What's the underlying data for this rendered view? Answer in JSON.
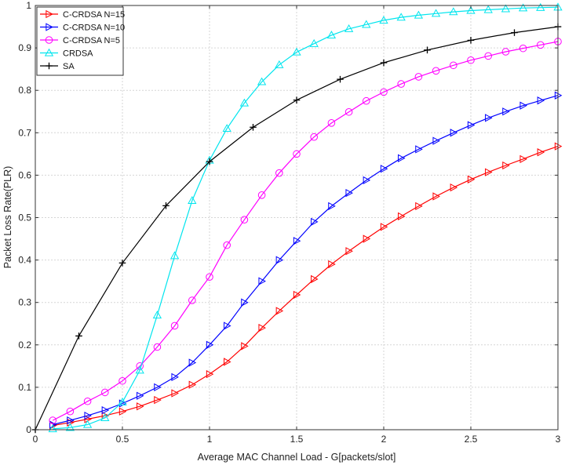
{
  "chart_data": {
    "type": "line",
    "title": "",
    "xlabel": "Average MAC Channel Load - G[packets/slot]",
    "ylabel": "Packet Loss Rate(PLR)",
    "xlim": [
      0,
      3
    ],
    "ylim": [
      0,
      1
    ],
    "xticks": [
      0,
      0.5,
      1,
      1.5,
      2,
      2.5,
      3
    ],
    "xtick_labels": [
      "0",
      "0.5",
      "1",
      "1.5",
      "2",
      "2.5",
      "3"
    ],
    "yticks": [
      0,
      0.1,
      0.2,
      0.3,
      0.4,
      0.5,
      0.6,
      0.7,
      0.8,
      0.9,
      1
    ],
    "ytick_labels": [
      "0",
      "0.1",
      "0.2",
      "0.3",
      "0.4",
      "0.5",
      "0.6",
      "0.7",
      "0.8",
      "0.9",
      "1"
    ],
    "grid": true,
    "legend_position": "top-left",
    "series": [
      {
        "name": "C-CRDSA N=15",
        "color": "#ff0000",
        "marker": "triangle-right",
        "x": [
          0.1,
          0.2,
          0.3,
          0.4,
          0.5,
          0.6,
          0.7,
          0.8,
          0.9,
          1.0,
          1.1,
          1.2,
          1.3,
          1.4,
          1.5,
          1.6,
          1.7,
          1.8,
          1.9,
          2.0,
          2.1,
          2.2,
          2.3,
          2.4,
          2.5,
          2.6,
          2.7,
          2.8,
          2.9,
          3.0
        ],
        "y": [
          0.01,
          0.017,
          0.025,
          0.033,
          0.043,
          0.055,
          0.07,
          0.086,
          0.106,
          0.131,
          0.16,
          0.197,
          0.24,
          0.28,
          0.318,
          0.355,
          0.39,
          0.421,
          0.45,
          0.478,
          0.503,
          0.527,
          0.55,
          0.571,
          0.59,
          0.607,
          0.623,
          0.638,
          0.654,
          0.668
        ]
      },
      {
        "name": "C-CRDSA N=10",
        "color": "#0000ff",
        "marker": "triangle-right",
        "x": [
          0.1,
          0.2,
          0.3,
          0.4,
          0.5,
          0.6,
          0.7,
          0.8,
          0.9,
          1.0,
          1.1,
          1.2,
          1.3,
          1.4,
          1.5,
          1.6,
          1.7,
          1.8,
          1.9,
          2.0,
          2.1,
          2.2,
          2.3,
          2.4,
          2.5,
          2.6,
          2.7,
          2.8,
          2.9,
          3.0
        ],
        "y": [
          0.012,
          0.022,
          0.033,
          0.046,
          0.062,
          0.08,
          0.1,
          0.124,
          0.158,
          0.2,
          0.245,
          0.3,
          0.35,
          0.4,
          0.445,
          0.49,
          0.527,
          0.558,
          0.588,
          0.615,
          0.64,
          0.661,
          0.681,
          0.7,
          0.718,
          0.735,
          0.75,
          0.764,
          0.776,
          0.788
        ]
      },
      {
        "name": "C-CRDSA N=5",
        "color": "#ff00ff",
        "marker": "circle",
        "x": [
          0.1,
          0.2,
          0.3,
          0.4,
          0.5,
          0.6,
          0.7,
          0.8,
          0.9,
          1.0,
          1.1,
          1.2,
          1.3,
          1.4,
          1.5,
          1.6,
          1.7,
          1.8,
          1.9,
          2.0,
          2.1,
          2.2,
          2.3,
          2.4,
          2.5,
          2.6,
          2.7,
          2.8,
          2.9,
          3.0
        ],
        "y": [
          0.022,
          0.043,
          0.067,
          0.088,
          0.115,
          0.15,
          0.195,
          0.245,
          0.305,
          0.36,
          0.435,
          0.495,
          0.553,
          0.605,
          0.65,
          0.69,
          0.723,
          0.749,
          0.775,
          0.796,
          0.815,
          0.832,
          0.846,
          0.859,
          0.871,
          0.881,
          0.891,
          0.899,
          0.907,
          0.915
        ]
      },
      {
        "name": "CRDSA",
        "color": "#00e5ee",
        "marker": "triangle-up",
        "x": [
          0.1,
          0.2,
          0.3,
          0.4,
          0.5,
          0.6,
          0.7,
          0.8,
          0.9,
          1.0,
          1.1,
          1.2,
          1.3,
          1.4,
          1.5,
          1.6,
          1.7,
          1.8,
          1.9,
          2.0,
          2.1,
          2.2,
          2.3,
          2.4,
          2.5,
          2.6,
          2.7,
          2.8,
          2.9,
          3.0
        ],
        "y": [
          0.002,
          0.005,
          0.012,
          0.028,
          0.065,
          0.14,
          0.27,
          0.41,
          0.54,
          0.635,
          0.71,
          0.77,
          0.82,
          0.86,
          0.89,
          0.91,
          0.93,
          0.945,
          0.955,
          0.965,
          0.972,
          0.977,
          0.981,
          0.985,
          0.988,
          0.99,
          0.992,
          0.994,
          0.995,
          0.996
        ]
      },
      {
        "name": "SA",
        "color": "#000000",
        "marker": "plus",
        "x": [
          0,
          0.25,
          0.5,
          0.75,
          1.0,
          1.25,
          1.5,
          1.75,
          2.0,
          2.25,
          2.5,
          2.75,
          3.0
        ],
        "y": [
          0,
          0.221,
          0.393,
          0.528,
          0.632,
          0.713,
          0.777,
          0.826,
          0.865,
          0.895,
          0.918,
          0.936,
          0.95
        ]
      }
    ]
  }
}
